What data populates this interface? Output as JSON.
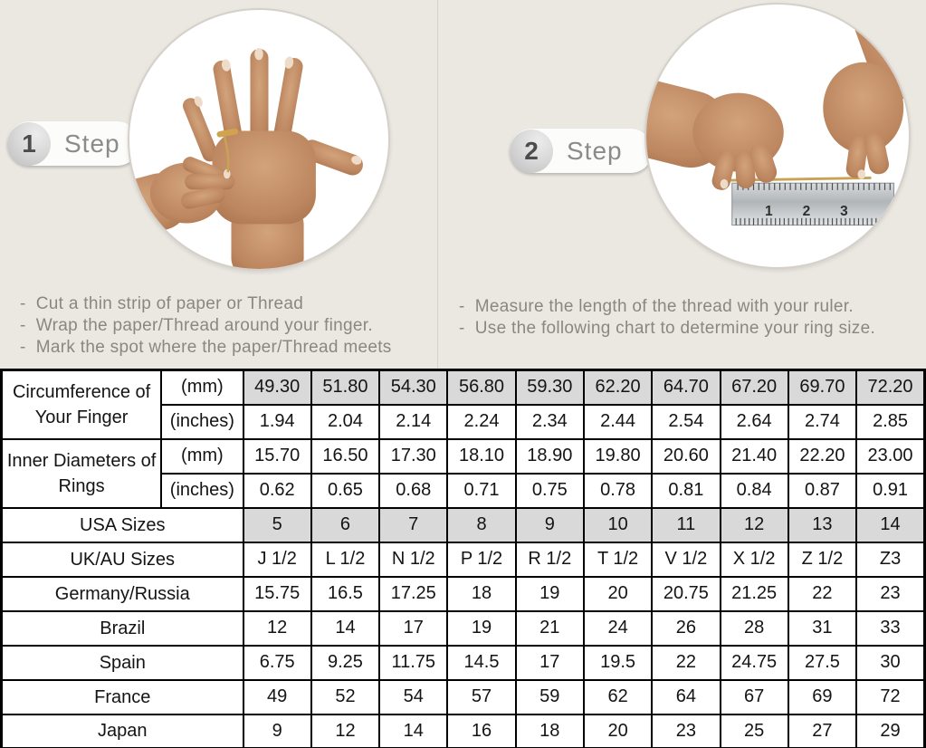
{
  "colors": {
    "top_background": "#ebe8e2",
    "shaded_cell": "#d9d9d9",
    "table_border": "#000000",
    "gold_thread": "#c9a355",
    "instruction_text": "#8b8780"
  },
  "steps": [
    {
      "number": "1",
      "label": "Step",
      "photo": "hand-with-thread-around-ring-finger",
      "instructions": [
        "-  Cut a thin strip of paper or Thread",
        "-  Wrap the paper/Thread around your finger.",
        "-  Mark the spot where the paper/Thread meets"
      ]
    },
    {
      "number": "2",
      "label": "Step",
      "photo": "hands-measuring-thread-with-ruler",
      "ruler_numbers": [
        "1",
        "2",
        "3"
      ],
      "instructions": [
        "-  Measure the length of the thread with your ruler.",
        "-  Use the following chart to determine your ring size."
      ]
    }
  ],
  "table": {
    "sections": [
      {
        "label": "Circumference of Your Finger",
        "units": [
          {
            "unit": "(mm)",
            "shaded": true,
            "values": [
              "49.30",
              "51.80",
              "54.30",
              "56.80",
              "59.30",
              "62.20",
              "64.70",
              "67.20",
              "69.70",
              "72.20"
            ]
          },
          {
            "unit": "(inches)",
            "shaded": false,
            "values": [
              "1.94",
              "2.04",
              "2.14",
              "2.24",
              "2.34",
              "2.44",
              "2.54",
              "2.64",
              "2.74",
              "2.85"
            ]
          }
        ]
      },
      {
        "label": "Inner Diameters of Rings",
        "units": [
          {
            "unit": "(mm)",
            "shaded": false,
            "values": [
              "15.70",
              "16.50",
              "17.30",
              "18.10",
              "18.90",
              "19.80",
              "20.60",
              "21.40",
              "22.20",
              "23.00"
            ]
          },
          {
            "unit": "(inches)",
            "shaded": false,
            "values": [
              "0.62",
              "0.65",
              "0.68",
              "0.71",
              "0.75",
              "0.78",
              "0.81",
              "0.84",
              "0.87",
              "0.91"
            ]
          }
        ]
      }
    ],
    "rows": [
      {
        "label": "USA Sizes",
        "shaded": true,
        "values": [
          "5",
          "6",
          "7",
          "8",
          "9",
          "10",
          "11",
          "12",
          "13",
          "14"
        ]
      },
      {
        "label": "UK/AU Sizes",
        "shaded": false,
        "values": [
          "J 1/2",
          "L 1/2",
          "N 1/2",
          "P 1/2",
          "R 1/2",
          "T 1/2",
          "V 1/2",
          "X 1/2",
          "Z 1/2",
          "Z3"
        ]
      },
      {
        "label": "Germany/Russia",
        "shaded": false,
        "values": [
          "15.75",
          "16.5",
          "17.25",
          "18",
          "19",
          "20",
          "20.75",
          "21.25",
          "22",
          "23"
        ]
      },
      {
        "label": "Brazil",
        "shaded": false,
        "values": [
          "12",
          "14",
          "17",
          "19",
          "21",
          "24",
          "26",
          "28",
          "31",
          "33"
        ]
      },
      {
        "label": "Spain",
        "shaded": false,
        "values": [
          "6.75",
          "9.25",
          "11.75",
          "14.5",
          "17",
          "19.5",
          "22",
          "24.75",
          "27.5",
          "30"
        ]
      },
      {
        "label": "France",
        "shaded": false,
        "values": [
          "49",
          "52",
          "54",
          "57",
          "59",
          "62",
          "64",
          "67",
          "69",
          "72"
        ]
      },
      {
        "label": "Japan",
        "shaded": false,
        "values": [
          "9",
          "12",
          "14",
          "16",
          "18",
          "20",
          "23",
          "25",
          "27",
          "29"
        ]
      }
    ]
  }
}
